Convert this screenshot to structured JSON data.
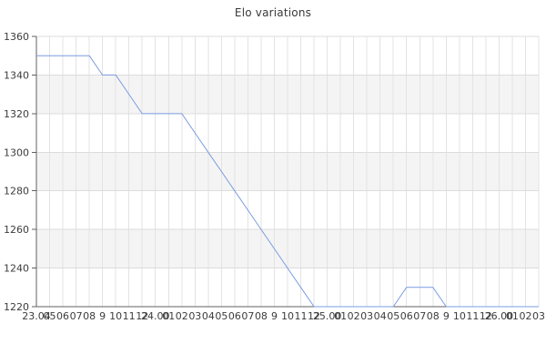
{
  "title": "Elo variations",
  "chart_data": {
    "type": "line",
    "title": "Elo variations",
    "x_labels": [
      "23.04",
      "05",
      "06",
      "07",
      "08",
      "9",
      "10",
      "11",
      "12",
      "24.00",
      "01",
      "02",
      "03",
      "04",
      "05",
      "06",
      "07",
      "08",
      "9",
      "10",
      "11",
      "12",
      "25.00",
      "01",
      "02",
      "03",
      "04",
      "05",
      "06",
      "07",
      "08",
      "9",
      "10",
      "11",
      "12",
      "26.00",
      "01",
      "02",
      "03"
    ],
    "values": [
      1350,
      1350,
      1350,
      1350,
      1350,
      1340,
      1340,
      1330,
      1320,
      1320,
      1320,
      1320,
      1310,
      1300,
      1290,
      1280,
      1270,
      1260,
      1250,
      1240,
      1230,
      1220,
      1220,
      1220,
      1220,
      1220,
      1220,
      1220,
      1230,
      1230,
      1230,
      1220,
      1220,
      1220,
      1220,
      1220,
      1220,
      1220,
      1220
    ],
    "y_ticks": [
      1360,
      1340,
      1320,
      1300,
      1280,
      1260,
      1240,
      1220
    ],
    "ylim": [
      1220,
      1360
    ],
    "grid": true,
    "legend": "none",
    "colors": {
      "line": "#7b9ce1",
      "band_light": "#ffffff",
      "band_dark": "#f4f4f4",
      "v_grid": "#e3e3e3",
      "h_grid": "#dcdcdc",
      "axis": "#606060",
      "tick_text": "#3c3c3c"
    }
  }
}
